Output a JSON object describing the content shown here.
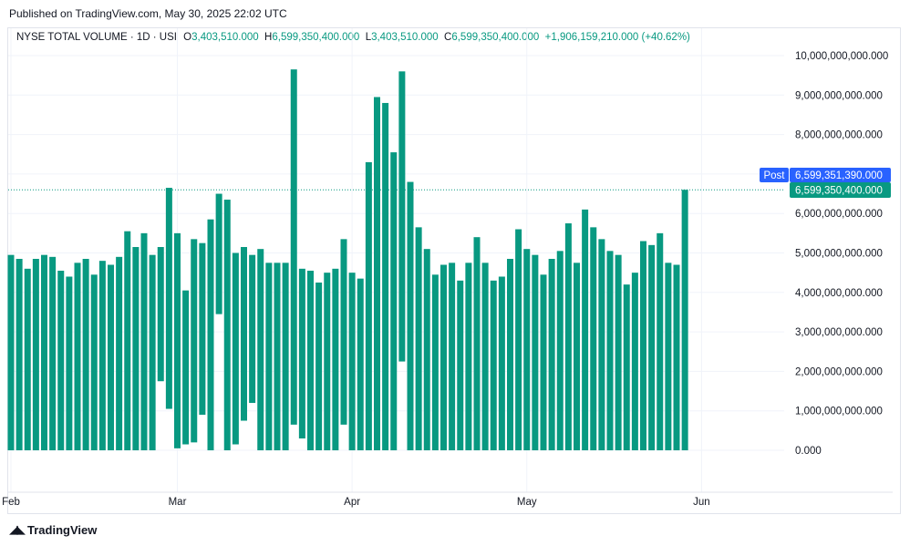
{
  "published": "Published on TradingView.com, May 30, 2025 22:02 UTC",
  "legend": {
    "symbol": "NYSE TOTAL VOLUME · 1D · USI",
    "o_label": "O",
    "o_value": "3,403,510.000",
    "h_label": "H",
    "h_value": "6,599,350,400.000",
    "l_label": "L",
    "l_value": "3,403,510.000",
    "c_label": "C",
    "c_value": "6,599,350,400.000",
    "change": "+1,906,159,210.000 (+40.62%)"
  },
  "brand": "TradingView",
  "colors": {
    "bar": "#089981",
    "post_tag": "#2962ff",
    "last_tag": "#089981"
  },
  "chart_data": {
    "type": "bar",
    "y_ticks": [
      "10,000,000,000.000",
      "9,000,000,000.000",
      "8,000,000,000.000",
      "7,000,000,000.000",
      "6,000,000,000.000",
      "5,000,000,000.000",
      "4,000,000,000.000",
      "3,000,000,000.000",
      "2,000,000,000.000",
      "1,000,000,000.000",
      "0.000"
    ],
    "ylim": [
      0,
      10000000000
    ],
    "x_ticks": [
      {
        "label": "Feb",
        "bar_index": 0
      },
      {
        "label": "Mar",
        "bar_index": 20
      },
      {
        "label": "Apr",
        "bar_index": 41
      },
      {
        "label": "May",
        "bar_index": 62
      },
      {
        "label": "Jun",
        "bar_index": 83
      }
    ],
    "post_label": "Post",
    "post_value": "6,599,351,390.000",
    "last_value": "6,599,350,400.000",
    "last_value_num": 6599350400,
    "bars": [
      {
        "top": 4.95,
        "bottom": 0
      },
      {
        "top": 4.85,
        "bottom": 0
      },
      {
        "top": 4.6,
        "bottom": 0
      },
      {
        "top": 4.85,
        "bottom": 0
      },
      {
        "top": 4.95,
        "bottom": 0
      },
      {
        "top": 4.9,
        "bottom": 0
      },
      {
        "top": 4.55,
        "bottom": 0
      },
      {
        "top": 4.4,
        "bottom": 0
      },
      {
        "top": 4.75,
        "bottom": 0
      },
      {
        "top": 4.85,
        "bottom": 0
      },
      {
        "top": 4.45,
        "bottom": 0
      },
      {
        "top": 4.8,
        "bottom": 0
      },
      {
        "top": 4.7,
        "bottom": 0
      },
      {
        "top": 4.9,
        "bottom": 0
      },
      {
        "top": 5.55,
        "bottom": 0
      },
      {
        "top": 5.15,
        "bottom": 0
      },
      {
        "top": 5.5,
        "bottom": 0
      },
      {
        "top": 4.95,
        "bottom": 0
      },
      {
        "top": 5.15,
        "bottom": 1.75
      },
      {
        "top": 6.65,
        "bottom": 1.05
      },
      {
        "top": 5.5,
        "bottom": 0.05
      },
      {
        "top": 4.05,
        "bottom": 0.15
      },
      {
        "top": 5.35,
        "bottom": 0.2
      },
      {
        "top": 5.25,
        "bottom": 0.9
      },
      {
        "top": 5.85,
        "bottom": 0
      },
      {
        "top": 6.5,
        "bottom": 3.45
      },
      {
        "top": 6.35,
        "bottom": 0
      },
      {
        "top": 5.0,
        "bottom": 0.15
      },
      {
        "top": 5.15,
        "bottom": 0.75
      },
      {
        "top": 4.95,
        "bottom": 1.2
      },
      {
        "top": 5.1,
        "bottom": 0
      },
      {
        "top": 4.75,
        "bottom": 0
      },
      {
        "top": 4.75,
        "bottom": 0
      },
      {
        "top": 4.75,
        "bottom": 0
      },
      {
        "top": 9.65,
        "bottom": 0.65
      },
      {
        "top": 4.6,
        "bottom": 0.3
      },
      {
        "top": 4.55,
        "bottom": 0
      },
      {
        "top": 4.25,
        "bottom": 0
      },
      {
        "top": 4.5,
        "bottom": 0
      },
      {
        "top": 4.6,
        "bottom": 0
      },
      {
        "top": 5.35,
        "bottom": 0.65
      },
      {
        "top": 4.5,
        "bottom": 0
      },
      {
        "top": 4.35,
        "bottom": 0
      },
      {
        "top": 7.3,
        "bottom": 0
      },
      {
        "top": 8.95,
        "bottom": 0
      },
      {
        "top": 8.8,
        "bottom": 0
      },
      {
        "top": 7.55,
        "bottom": 0
      },
      {
        "top": 9.6,
        "bottom": 2.25
      },
      {
        "top": 6.8,
        "bottom": 0
      },
      {
        "top": 5.65,
        "bottom": 0
      },
      {
        "top": 5.1,
        "bottom": 0
      },
      {
        "top": 4.45,
        "bottom": 0
      },
      {
        "top": 4.7,
        "bottom": 0
      },
      {
        "top": 4.75,
        "bottom": 0
      },
      {
        "top": 4.3,
        "bottom": 0
      },
      {
        "top": 4.75,
        "bottom": 0
      },
      {
        "top": 5.4,
        "bottom": 0
      },
      {
        "top": 4.75,
        "bottom": 0
      },
      {
        "top": 4.3,
        "bottom": 0
      },
      {
        "top": 4.4,
        "bottom": 0
      },
      {
        "top": 4.85,
        "bottom": 0
      },
      {
        "top": 5.6,
        "bottom": 0
      },
      {
        "top": 5.1,
        "bottom": 0
      },
      {
        "top": 4.95,
        "bottom": 0
      },
      {
        "top": 4.45,
        "bottom": 0
      },
      {
        "top": 4.85,
        "bottom": 0
      },
      {
        "top": 5.05,
        "bottom": 0
      },
      {
        "top": 5.75,
        "bottom": 0
      },
      {
        "top": 4.75,
        "bottom": 0
      },
      {
        "top": 6.1,
        "bottom": 0
      },
      {
        "top": 5.65,
        "bottom": 0
      },
      {
        "top": 5.35,
        "bottom": 0
      },
      {
        "top": 5.05,
        "bottom": 0
      },
      {
        "top": 4.95,
        "bottom": 0
      },
      {
        "top": 4.2,
        "bottom": 0
      },
      {
        "top": 4.5,
        "bottom": 0
      },
      {
        "top": 5.3,
        "bottom": 0
      },
      {
        "top": 5.2,
        "bottom": 0
      },
      {
        "top": 5.5,
        "bottom": 0
      },
      {
        "top": 4.75,
        "bottom": 0
      },
      {
        "top": 4.7,
        "bottom": 0
      },
      {
        "top": 6.6,
        "bottom": 0
      }
    ]
  }
}
